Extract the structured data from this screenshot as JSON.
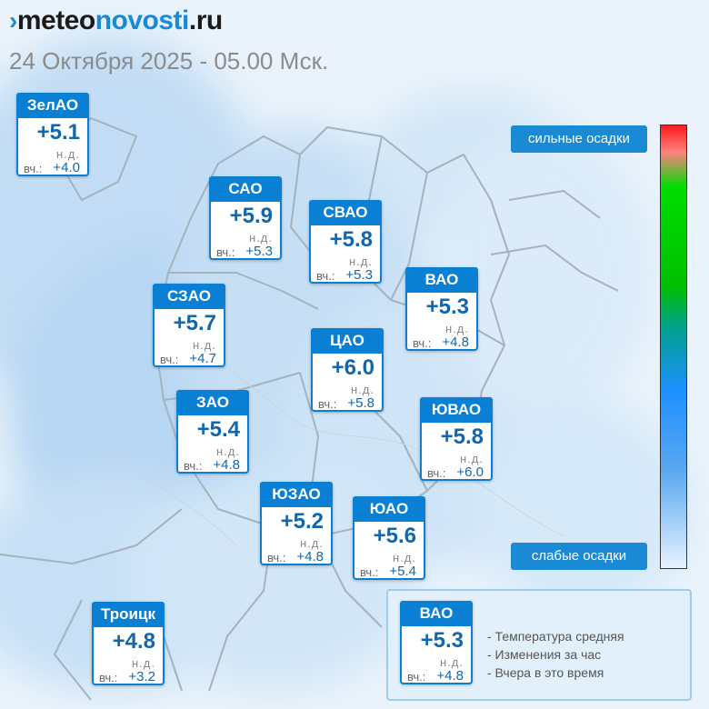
{
  "header": {
    "brand_part1": "meteo",
    "brand_part2": "novosti",
    "brand_part3": ".ru",
    "datetime": "24 Октября 2025 - 05.00 Мск."
  },
  "districts": [
    {
      "name": "ЗелАО",
      "temp": "+5.1",
      "change": "н.д.",
      "yesterday_label": "вч.:",
      "yesterday": "+4.0"
    },
    {
      "name": "САО",
      "temp": "+5.9",
      "change": "н.д.",
      "yesterday_label": "вч.:",
      "yesterday": "+5.3"
    },
    {
      "name": "СВАО",
      "temp": "+5.8",
      "change": "н.д.",
      "yesterday_label": "вч.:",
      "yesterday": "+5.3"
    },
    {
      "name": "ВАО",
      "temp": "+5.3",
      "change": "н.д.",
      "yesterday_label": "вч.:",
      "yesterday": "+4.8"
    },
    {
      "name": "СЗАО",
      "temp": "+5.7",
      "change": "н.д.",
      "yesterday_label": "вч.:",
      "yesterday": "+4.7"
    },
    {
      "name": "ЦАО",
      "temp": "+6.0",
      "change": "н.д.",
      "yesterday_label": "вч.:",
      "yesterday": "+5.8"
    },
    {
      "name": "ЗАО",
      "temp": "+5.4",
      "change": "н.д.",
      "yesterday_label": "вч.:",
      "yesterday": "+4.8"
    },
    {
      "name": "ЮВАО",
      "temp": "+5.8",
      "change": "н.д.",
      "yesterday_label": "вч.:",
      "yesterday": "+6.0"
    },
    {
      "name": "ЮЗАО",
      "temp": "+5.2",
      "change": "н.д.",
      "yesterday_label": "вч.:",
      "yesterday": "+4.8"
    },
    {
      "name": "ЮАО",
      "temp": "+5.6",
      "change": "н.д.",
      "yesterday_label": "вч.:",
      "yesterday": "+5.4"
    },
    {
      "name": "Троицк",
      "temp": "+4.8",
      "change": "н.д.",
      "yesterday_label": "вч.:",
      "yesterday": "+3.2"
    }
  ],
  "precip_scale": {
    "high_label": "сильные осадки",
    "low_label": "слабые осадки",
    "colors": [
      "#ff1a1a",
      "#00c000",
      "#1e90ff",
      "#e6f2ff"
    ]
  },
  "legend": {
    "sample": {
      "name": "ВАО",
      "temp": "+5.3",
      "change": "н.д.",
      "yesterday_label": "вч.:",
      "yesterday": "+4.8"
    },
    "notes": [
      "- Температура средняя",
      "- Изменения за час",
      "- Вчера в это время"
    ]
  },
  "colors": {
    "accent": "#0a80d4",
    "value": "#1466a8",
    "brand": "#1a8ad4"
  }
}
